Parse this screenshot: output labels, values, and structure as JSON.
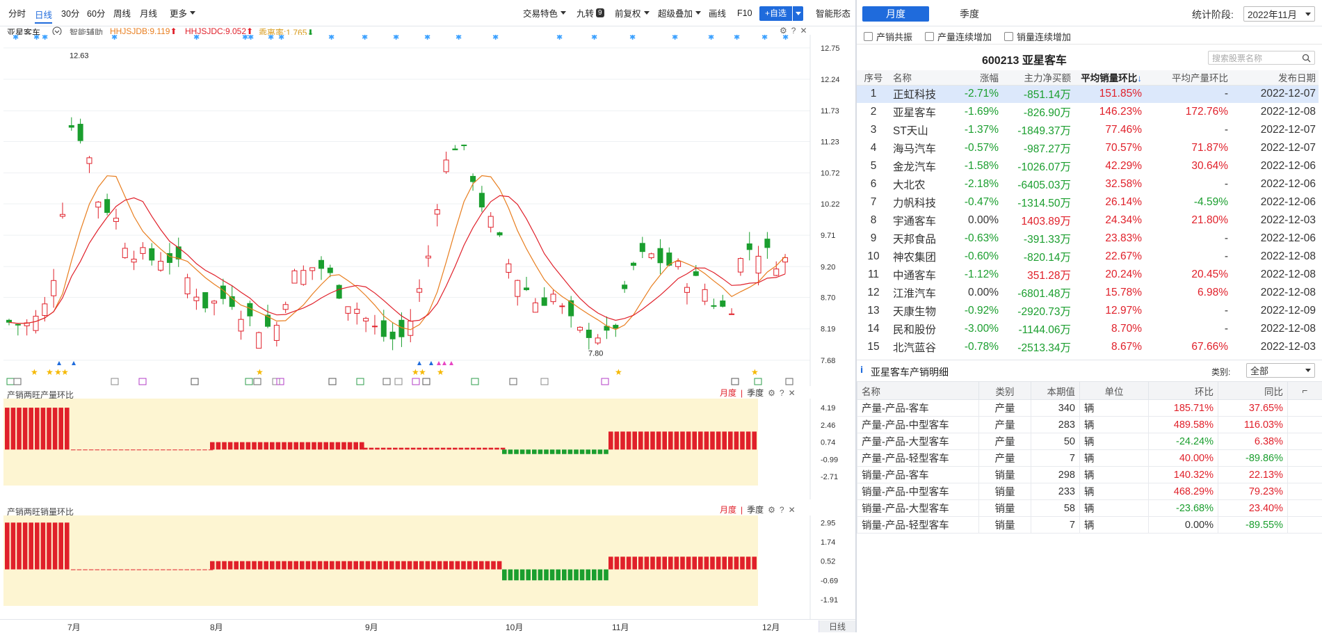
{
  "toolbar": {
    "left": [
      "分时",
      "日线",
      "30分",
      "60分",
      "周线",
      "月线",
      "更多"
    ],
    "active": "日线",
    "right": {
      "jyts": "交易特色",
      "jiuzhuan": "九转",
      "jiuzhuan_badge": "9",
      "fuquan": "前复权",
      "diejia": "超级叠加",
      "huaxian": "画线",
      "f10": "F10",
      "zixuan": "+自选",
      "znxt": "智能形态"
    }
  },
  "kline": {
    "stock_name": "亚星客车",
    "assist": "智能辅助",
    "ind1": "HHJSJDB:9.119",
    "ind2": "HHJSJDC:9.052",
    "ind3": "乖离率:1.765",
    "high_label": "12.63",
    "low_label": "7.80",
    "y_ticks": [
      "12.75",
      "12.24",
      "11.73",
      "11.23",
      "10.72",
      "10.22",
      "9.71",
      "9.20",
      "8.70",
      "8.19",
      "7.68"
    ],
    "x_labels": [
      "7月",
      "8月",
      "9月",
      "10月",
      "11月",
      "12月"
    ],
    "period_btn": "日线"
  },
  "panel1": {
    "title": "产销两旺产量环比",
    "tab_month": "月度",
    "tab_season": "季度",
    "y_ticks": [
      "4.19",
      "2.46",
      "0.74",
      "-0.99",
      "-2.71"
    ]
  },
  "panel2": {
    "title": "产销两旺销量环比",
    "tab_month": "月度",
    "tab_season": "季度",
    "y_ticks": [
      "2.95",
      "1.74",
      "0.52",
      "-0.69",
      "-1.91"
    ]
  },
  "right": {
    "tab_month": "月度",
    "tab_season": "季度",
    "stat_label": "统计阶段:",
    "stat_value": "2022年11月",
    "checks": [
      "产销共振",
      "产量连续增加",
      "销量连续增加"
    ],
    "title": "600213  亚星客车",
    "search_placeholder": "搜索股票名称",
    "headers": [
      "序号",
      "名称",
      "涨幅",
      "主力净买额",
      "平均销量环比",
      "平均产量环比",
      "发布日期"
    ],
    "rows": [
      [
        "1",
        "正虹科技",
        "-2.71%",
        "-851.14万",
        "151.85%",
        "-",
        "2022-12-07"
      ],
      [
        "2",
        "亚星客车",
        "-1.69%",
        "-826.90万",
        "146.23%",
        "172.76%",
        "2022-12-08"
      ],
      [
        "3",
        "ST天山",
        "-1.37%",
        "-1849.37万",
        "77.46%",
        "-",
        "2022-12-07"
      ],
      [
        "4",
        "海马汽车",
        "-0.57%",
        "-987.27万",
        "70.57%",
        "71.87%",
        "2022-12-07"
      ],
      [
        "5",
        "金龙汽车",
        "-1.58%",
        "-1026.07万",
        "42.29%",
        "30.64%",
        "2022-12-06"
      ],
      [
        "6",
        "大北农",
        "-2.18%",
        "-6405.03万",
        "32.58%",
        "-",
        "2022-12-06"
      ],
      [
        "7",
        "力帆科技",
        "-0.47%",
        "-1314.50万",
        "26.14%",
        "-4.59%",
        "2022-12-06"
      ],
      [
        "8",
        "宇通客车",
        "0.00%",
        "1403.89万",
        "24.34%",
        "21.80%",
        "2022-12-03"
      ],
      [
        "9",
        "天邦食品",
        "-0.63%",
        "-391.33万",
        "23.83%",
        "-",
        "2022-12-06"
      ],
      [
        "10",
        "神农集团",
        "-0.60%",
        "-820.14万",
        "22.67%",
        "-",
        "2022-12-08"
      ],
      [
        "11",
        "中通客车",
        "-1.12%",
        "351.28万",
        "20.24%",
        "20.45%",
        "2022-12-08"
      ],
      [
        "12",
        "江淮汽车",
        "0.00%",
        "-6801.48万",
        "15.78%",
        "6.98%",
        "2022-12-08"
      ],
      [
        "13",
        "天康生物",
        "-0.92%",
        "-2920.73万",
        "12.97%",
        "-",
        "2022-12-09"
      ],
      [
        "14",
        "民和股份",
        "-3.00%",
        "-1144.06万",
        "8.70%",
        "-",
        "2022-12-08"
      ],
      [
        "15",
        "北汽蓝谷",
        "-0.78%",
        "-2513.34万",
        "8.67%",
        "67.66%",
        "2022-12-03"
      ]
    ],
    "detail_title": "亚星客车产销明细",
    "cat_label": "类别:",
    "cat_value": "全部",
    "detail_headers": [
      "名称",
      "类别",
      "本期值",
      "单位",
      "环比",
      "同比"
    ],
    "detail_rows": [
      [
        "产量-产品-客车",
        "产量",
        "340",
        "辆",
        "185.71%",
        "37.65%"
      ],
      [
        "产量-产品-中型客车",
        "产量",
        "283",
        "辆",
        "489.58%",
        "116.03%"
      ],
      [
        "产量-产品-大型客车",
        "产量",
        "50",
        "辆",
        "-24.24%",
        "6.38%"
      ],
      [
        "产量-产品-轻型客车",
        "产量",
        "7",
        "辆",
        "40.00%",
        "-89.86%"
      ],
      [
        "销量-产品-客车",
        "销量",
        "298",
        "辆",
        "140.32%",
        "22.13%"
      ],
      [
        "销量-产品-中型客车",
        "销量",
        "233",
        "辆",
        "468.29%",
        "79.23%"
      ],
      [
        "销量-产品-大型客车",
        "销量",
        "58",
        "辆",
        "-23.68%",
        "23.40%"
      ],
      [
        "销量-产品-轻型客车",
        "销量",
        "7",
        "辆",
        "0.00%",
        "-89.55%"
      ]
    ]
  },
  "colors": {
    "up": "#e0202a",
    "down": "#1a9e2e",
    "accent": "#1f6bdc",
    "bar_bg": "#fdf5d2"
  }
}
